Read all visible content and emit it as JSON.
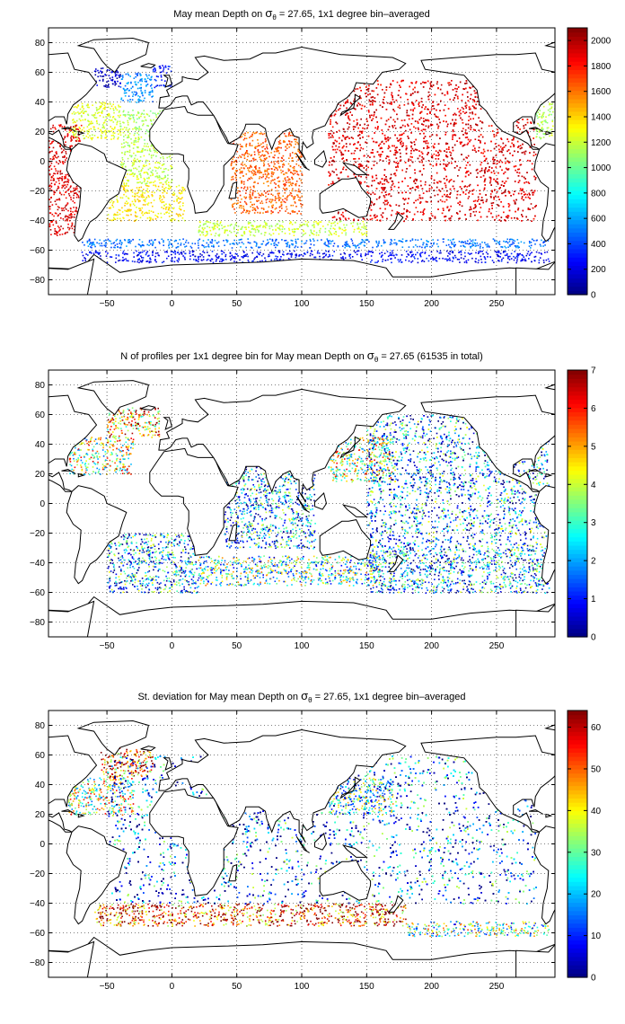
{
  "figure": {
    "panels": [
      {
        "title_parts": {
          "pre": "May mean Depth on ",
          "sym": "σ",
          "sub": "θ",
          "post": " = 27.65, 1x1 degree bin–averaged"
        },
        "colorbar": {
          "min": 0,
          "max": 2100,
          "tick_labels": [
            "0",
            "200",
            "400",
            "600",
            "800",
            "1000",
            "1200",
            "1400",
            "1600",
            "1800",
            "2000"
          ],
          "ticks": [
            0,
            200,
            400,
            600,
            800,
            1000,
            1200,
            1400,
            1600,
            1800,
            2000
          ]
        }
      },
      {
        "title_parts": {
          "pre": "N of profiles per 1x1 degree bin for May mean Depth on ",
          "sym": "σ",
          "sub": "θ",
          "post": " = 27.65 (61535 in total)"
        },
        "colorbar": {
          "min": 0,
          "max": 7,
          "tick_labels": [
            "0",
            "1",
            "2",
            "3",
            "4",
            "5",
            "6",
            "7"
          ],
          "ticks": [
            0,
            1,
            2,
            3,
            4,
            5,
            6,
            7
          ]
        }
      },
      {
        "title_parts": {
          "pre": "St. deviation for May mean Depth on ",
          "sym": "σ",
          "sub": "θ",
          "post": " = 27.65, 1x1 degree bin–averaged"
        },
        "colorbar": {
          "min": 0,
          "max": 64,
          "tick_labels": [
            "0",
            "10",
            "20",
            "30",
            "40",
            "50",
            "60"
          ],
          "ticks": [
            0,
            10,
            20,
            30,
            40,
            50,
            60
          ]
        }
      }
    ],
    "x_tick_labels": [
      "−50",
      "0",
      "50",
      "100",
      "150",
      "200",
      "250"
    ],
    "y_tick_labels": [
      "80",
      "60",
      "40",
      "20",
      "0",
      "−20",
      "−40",
      "−60",
      "−80"
    ],
    "colormap": "jet"
  },
  "chart_data": [
    {
      "type": "heatmap",
      "title": "May mean Depth on σθ = 27.65, 1x1 degree bin–averaged",
      "x_ticks": [
        -50,
        0,
        50,
        100,
        150,
        200,
        250
      ],
      "y_ticks": [
        80,
        60,
        40,
        20,
        0,
        -20,
        -40,
        -60,
        -80
      ],
      "xlim": [
        -95,
        295
      ],
      "ylim": [
        -90,
        90
      ],
      "colorbar_range": [
        0,
        2100
      ],
      "colormap": "jet",
      "grid": true,
      "regions": [
        {
          "lon": [
            -60,
            -40
          ],
          "lat": [
            50,
            65
          ],
          "value": 150
        },
        {
          "lon": [
            -40,
            -15
          ],
          "lat": [
            40,
            60
          ],
          "value": 550
        },
        {
          "lon": [
            -15,
            0
          ],
          "lat": [
            50,
            65
          ],
          "value": 300
        },
        {
          "lon": [
            -80,
            -40
          ],
          "lat": [
            15,
            40
          ],
          "value": 1250
        },
        {
          "lon": [
            -40,
            -5
          ],
          "lat": [
            10,
            35
          ],
          "value": 1150
        },
        {
          "lon": [
            -40,
            0
          ],
          "lat": [
            -15,
            10
          ],
          "value": 1200
        },
        {
          "lon": [
            -50,
            10
          ],
          "lat": [
            -40,
            -15
          ],
          "value": 1350
        },
        {
          "lon": [
            45,
            100
          ],
          "lat": [
            -35,
            20
          ],
          "value": 1650
        },
        {
          "lon": [
            120,
            280
          ],
          "lat": [
            -40,
            55
          ],
          "value": 1900
        },
        {
          "lon": [
            20,
            150
          ],
          "lat": [
            -50,
            -40
          ],
          "value": 1200
        },
        {
          "lon": [
            -70,
            290
          ],
          "lat": [
            -58,
            -52
          ],
          "value": 500
        },
        {
          "lon": [
            -70,
            290
          ],
          "lat": [
            -68,
            -60
          ],
          "value": 250
        },
        {
          "lon": [
            -95,
            -70
          ],
          "lat": [
            -50,
            25
          ],
          "value": 1900
        },
        {
          "lon": [
            280,
            295
          ],
          "lat": [
            15,
            40
          ],
          "value": 1150
        }
      ]
    },
    {
      "type": "heatmap",
      "title": "N of profiles per 1x1 degree bin for May mean Depth on σθ = 27.65 (61535 in total)",
      "x_ticks": [
        -50,
        0,
        50,
        100,
        150,
        200,
        250
      ],
      "y_ticks": [
        80,
        60,
        40,
        20,
        0,
        -20,
        -40,
        -60,
        -80
      ],
      "xlim": [
        -95,
        295
      ],
      "ylim": [
        -90,
        90
      ],
      "colorbar_range": [
        0,
        7
      ],
      "colormap": "jet",
      "grid": true,
      "regions": [
        {
          "lon": [
            -50,
            -10
          ],
          "lat": [
            45,
            65
          ],
          "value": 5
        },
        {
          "lon": [
            -80,
            -30
          ],
          "lat": [
            20,
            45
          ],
          "value": 4
        },
        {
          "lon": [
            120,
            170
          ],
          "lat": [
            15,
            45
          ],
          "value": 4
        },
        {
          "lon": [
            -50,
            20
          ],
          "lat": [
            -60,
            -20
          ],
          "value": 2
        },
        {
          "lon": [
            20,
            160
          ],
          "lat": [
            -55,
            -35
          ],
          "value": 3
        },
        {
          "lon": [
            150,
            290
          ],
          "lat": [
            -60,
            -30
          ],
          "value": 2
        },
        {
          "lon": [
            150,
            290
          ],
          "lat": [
            -30,
            60
          ],
          "value": 2
        },
        {
          "lon": [
            40,
            110
          ],
          "lat": [
            -30,
            25
          ],
          "value": 2
        }
      ]
    },
    {
      "type": "heatmap",
      "title": "St. deviation for May mean Depth on σθ = 27.65, 1x1 degree bin–averaged",
      "x_ticks": [
        -50,
        0,
        50,
        100,
        150,
        200,
        250
      ],
      "y_ticks": [
        80,
        60,
        40,
        20,
        0,
        -20,
        -40,
        -60,
        -80
      ],
      "xlim": [
        -95,
        295
      ],
      "ylim": [
        -90,
        90
      ],
      "colorbar_range": [
        0,
        64
      ],
      "colormap": "jet",
      "grid": true,
      "regions": [
        {
          "lon": [
            -55,
            -15
          ],
          "lat": [
            45,
            65
          ],
          "value": 55
        },
        {
          "lon": [
            -80,
            -30
          ],
          "lat": [
            20,
            45
          ],
          "value": 35
        },
        {
          "lon": [
            -60,
            180
          ],
          "lat": [
            -55,
            -40
          ],
          "value": 55
        },
        {
          "lon": [
            -50,
            280
          ],
          "lat": [
            -40,
            60
          ],
          "value": 15
        },
        {
          "lon": [
            180,
            290
          ],
          "lat": [
            -62,
            -52
          ],
          "value": 30
        },
        {
          "lon": [
            120,
            170
          ],
          "lat": [
            20,
            45
          ],
          "value": 25
        }
      ]
    }
  ]
}
